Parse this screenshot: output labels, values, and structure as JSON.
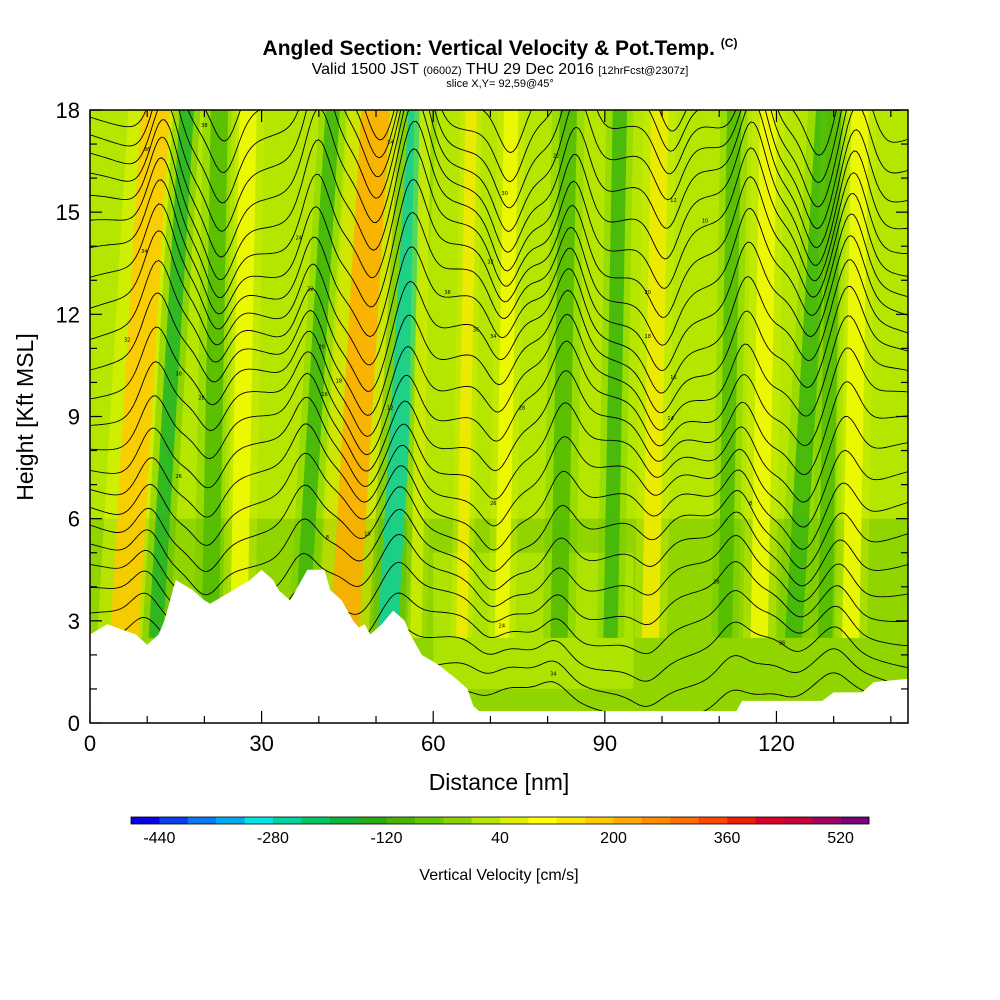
{
  "header": {
    "title_main": "Angled Section: Vertical Velocity & Pot.Temp.",
    "title_units": "(C)",
    "valid_prefix": "Valid 1500 JST",
    "valid_utc": "(0600Z)",
    "valid_date": "THU 29 Dec 2016",
    "forecast": "[12hrFcst@2307z]",
    "slice": "slice X,Y= 92,59@45°"
  },
  "chart_data": {
    "type": "heatmap",
    "xlabel": "Distance [nm]",
    "ylabel": "Height [Kft MSL]",
    "xlim": [
      0,
      143
    ],
    "ylim": [
      0,
      18
    ],
    "x_ticks": [
      0,
      30,
      60,
      90,
      120
    ],
    "y_ticks": [
      0,
      3,
      6,
      9,
      12,
      15,
      18
    ],
    "colorbar": {
      "title": "Vertical Velocity [cm/s]",
      "tick_values": [
        -440,
        -280,
        -120,
        40,
        200,
        360,
        520
      ],
      "bins": [
        -480,
        -440,
        -400,
        -360,
        -320,
        -280,
        -240,
        -200,
        -160,
        -120,
        -80,
        -40,
        0,
        40,
        80,
        120,
        160,
        200,
        240,
        280,
        320,
        360,
        400,
        440,
        480,
        520,
        560
      ],
      "colors": [
        "#0a00e6",
        "#0a3cf0",
        "#0a78f0",
        "#00aaf0",
        "#00e6e6",
        "#00d2a0",
        "#00c864",
        "#10b43c",
        "#28aa14",
        "#46b400",
        "#64c800",
        "#8cd200",
        "#b4e600",
        "#dcf000",
        "#ffff00",
        "#ffe600",
        "#ffc800",
        "#ffaa00",
        "#ff8c00",
        "#ff6e00",
        "#ff4600",
        "#f01e00",
        "#dc0028",
        "#c8003c",
        "#a00064",
        "#780078"
      ]
    },
    "vertical_velocity_bands": [
      {
        "x": 6,
        "w": 5,
        "value": 220
      },
      {
        "x": 11.5,
        "w": 2.5,
        "value": -180
      },
      {
        "x": 21,
        "w": 3,
        "value": -120
      },
      {
        "x": 26,
        "w": 3,
        "value": 90
      },
      {
        "x": 37,
        "w": 2.5,
        "value": -160
      },
      {
        "x": 44.5,
        "w": 5,
        "value": 250
      },
      {
        "x": 52,
        "w": 3.5,
        "value": -300
      },
      {
        "x": 57,
        "w": 2,
        "value": 60
      },
      {
        "x": 65,
        "w": 2,
        "value": 120
      },
      {
        "x": 72,
        "w": 2.5,
        "value": 80
      },
      {
        "x": 82,
        "w": 3,
        "value": -120
      },
      {
        "x": 91,
        "w": 2.5,
        "value": -140
      },
      {
        "x": 98,
        "w": 3,
        "value": 150
      },
      {
        "x": 111,
        "w": 2.5,
        "value": -100
      },
      {
        "x": 117,
        "w": 3,
        "value": 100
      },
      {
        "x": 123,
        "w": 3,
        "value": -160
      },
      {
        "x": 128.5,
        "w": 2.5,
        "value": -120
      },
      {
        "x": 133,
        "w": 3,
        "value": 80
      }
    ],
    "terrain_height": [
      [
        0,
        2.6
      ],
      [
        3,
        2.9
      ],
      [
        8,
        2.6
      ],
      [
        10,
        2.3
      ],
      [
        12,
        2.6
      ],
      [
        13,
        3.0
      ],
      [
        14,
        3.6
      ],
      [
        15,
        4.2
      ],
      [
        18,
        3.9
      ],
      [
        20,
        3.6
      ],
      [
        21,
        3.5
      ],
      [
        25,
        3.9
      ],
      [
        28,
        4.2
      ],
      [
        30,
        4.5
      ],
      [
        32,
        4.2
      ],
      [
        33,
        3.9
      ],
      [
        35,
        3.6
      ],
      [
        36,
        3.9
      ],
      [
        38,
        4.5
      ],
      [
        41,
        4.5
      ],
      [
        42,
        3.9
      ],
      [
        44,
        3.6
      ],
      [
        45,
        3.3
      ],
      [
        46,
        3.0
      ],
      [
        47,
        2.8
      ],
      [
        48,
        2.9
      ],
      [
        49,
        2.6
      ],
      [
        51,
        2.9
      ],
      [
        53,
        3.3
      ],
      [
        55,
        3.0
      ],
      [
        56,
        2.6
      ],
      [
        58,
        2.0
      ],
      [
        61,
        1.7
      ],
      [
        64,
        1.3
      ],
      [
        66,
        1.0
      ],
      [
        67,
        0.5
      ],
      [
        68,
        0.35
      ],
      [
        113,
        0.35
      ],
      [
        114,
        0.65
      ],
      [
        128,
        0.65
      ],
      [
        130,
        0.9
      ],
      [
        135,
        0.9
      ],
      [
        137,
        1.2
      ],
      [
        143,
        1.3
      ]
    ],
    "theta_contour_labels": [
      "38",
      "36",
      "34",
      "32",
      "30",
      "28",
      "26",
      "24",
      "22",
      "20",
      "18",
      "16",
      "14",
      "12",
      "10",
      "8"
    ]
  }
}
